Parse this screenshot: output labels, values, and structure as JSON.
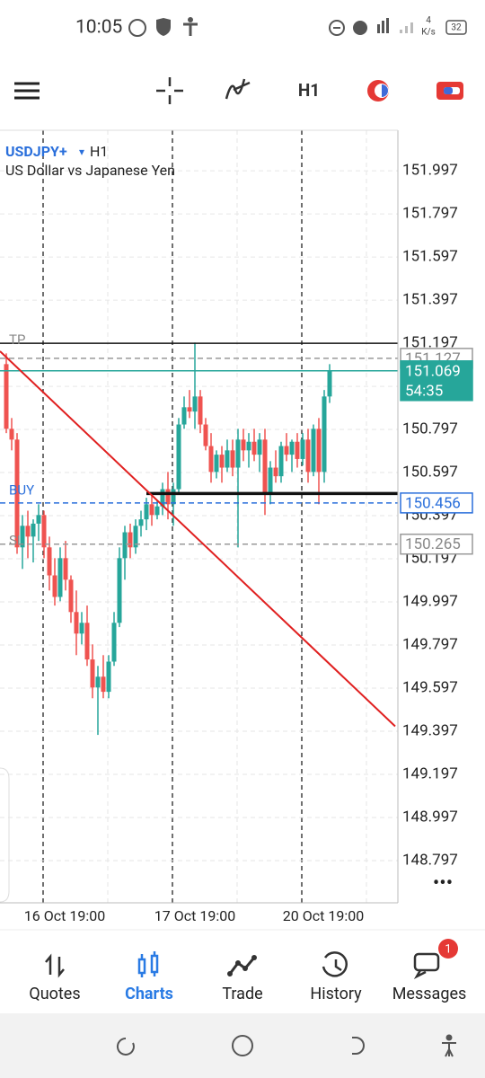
{
  "status_bar": {
    "time": "10:05",
    "net_speed": "4",
    "net_unit": "K/s",
    "battery": "32"
  },
  "toolbar": {
    "timeframe": "H1"
  },
  "chart_data": {
    "type": "candlestick",
    "symbol": "USDJPY+",
    "symbol_marker": "▾",
    "timeframe": "H1",
    "description": "US Dollar vs Japanese Yen",
    "x_labels": [
      "16 Oct 19:00",
      "17 Oct 19:00",
      "20 Oct 19:00"
    ],
    "ylim": [
      148.601,
      152.185
    ],
    "yticks": [
      151.997,
      151.797,
      151.597,
      151.397,
      151.197,
      150.997,
      150.797,
      150.597,
      150.397,
      150.197,
      149.997,
      149.797,
      149.597,
      149.397,
      149.197,
      148.997,
      148.797
    ],
    "colors": {
      "up": "#26a69a",
      "down": "#ef5350"
    },
    "candles": [
      [
        151.1,
        151.15,
        150.78,
        150.8
      ],
      [
        150.8,
        150.85,
        150.7,
        150.75
      ],
      [
        150.75,
        150.78,
        150.22,
        150.25
      ],
      [
        150.25,
        150.4,
        150.15,
        150.35
      ],
      [
        150.35,
        150.42,
        150.2,
        150.3
      ],
      [
        150.3,
        150.38,
        150.18,
        150.36
      ],
      [
        150.36,
        150.45,
        150.28,
        150.4
      ],
      [
        150.4,
        150.42,
        150.2,
        150.25
      ],
      [
        150.25,
        150.3,
        150.05,
        150.12
      ],
      [
        150.12,
        150.2,
        149.98,
        150.02
      ],
      [
        150.02,
        150.25,
        150.0,
        150.2
      ],
      [
        150.2,
        150.28,
        150.05,
        150.1
      ],
      [
        150.1,
        150.12,
        149.9,
        149.95
      ],
      [
        149.95,
        150.05,
        149.75,
        149.85
      ],
      [
        149.85,
        149.95,
        149.8,
        149.9
      ],
      [
        149.9,
        149.98,
        149.7,
        149.73
      ],
      [
        149.73,
        149.8,
        149.55,
        149.6
      ],
      [
        149.6,
        149.7,
        149.38,
        149.65
      ],
      [
        149.65,
        149.75,
        149.55,
        149.58
      ],
      [
        149.58,
        149.75,
        149.55,
        149.72
      ],
      [
        149.72,
        149.95,
        149.7,
        149.9
      ],
      [
        149.9,
        150.25,
        149.88,
        150.2
      ],
      [
        150.2,
        150.35,
        150.1,
        150.32
      ],
      [
        150.32,
        150.36,
        150.2,
        150.25
      ],
      [
        150.25,
        150.38,
        150.22,
        150.35
      ],
      [
        150.35,
        150.42,
        150.3,
        150.38
      ],
      [
        150.38,
        150.48,
        150.33,
        150.45
      ],
      [
        150.45,
        150.5,
        150.35,
        150.4
      ],
      [
        150.4,
        150.47,
        150.38,
        150.44
      ],
      [
        150.44,
        150.55,
        150.4,
        150.52
      ],
      [
        150.52,
        150.6,
        150.38,
        150.45
      ],
      [
        150.45,
        150.55,
        150.35,
        150.52
      ],
      [
        150.52,
        150.85,
        150.5,
        150.82
      ],
      [
        150.82,
        150.95,
        150.8,
        150.9
      ],
      [
        150.9,
        150.98,
        150.85,
        150.88
      ],
      [
        150.88,
        151.2,
        150.8,
        150.95
      ],
      [
        150.95,
        150.98,
        150.78,
        150.82
      ],
      [
        150.82,
        150.85,
        150.7,
        150.72
      ],
      [
        150.72,
        150.78,
        150.55,
        150.6
      ],
      [
        150.6,
        150.7,
        150.57,
        150.68
      ],
      [
        150.68,
        150.72,
        150.55,
        150.62
      ],
      [
        150.62,
        150.75,
        150.6,
        150.7
      ],
      [
        150.7,
        150.75,
        150.58,
        150.62
      ],
      [
        150.62,
        150.8,
        150.25,
        150.75
      ],
      [
        150.75,
        150.8,
        150.65,
        150.7
      ],
      [
        150.7,
        150.78,
        150.62,
        150.74
      ],
      [
        150.74,
        150.8,
        150.65,
        150.68
      ],
      [
        150.68,
        150.78,
        150.6,
        150.75
      ],
      [
        150.75,
        150.8,
        150.4,
        150.5
      ],
      [
        150.5,
        150.65,
        150.45,
        150.62
      ],
      [
        150.62,
        150.7,
        150.55,
        150.58
      ],
      [
        150.58,
        150.74,
        150.55,
        150.72
      ],
      [
        150.72,
        150.78,
        150.65,
        150.68
      ],
      [
        150.68,
        150.75,
        150.6,
        150.74
      ],
      [
        150.74,
        150.78,
        150.62,
        150.66
      ],
      [
        150.66,
        150.78,
        150.63,
        150.75
      ],
      [
        150.75,
        150.8,
        150.55,
        150.6
      ],
      [
        150.6,
        150.82,
        150.58,
        150.8
      ],
      [
        150.8,
        150.85,
        150.45,
        150.6
      ],
      [
        150.6,
        150.98,
        150.55,
        150.95
      ],
      [
        150.95,
        151.1,
        150.92,
        151.07
      ]
    ],
    "levels": [
      {
        "name": "TP",
        "value": 151.197,
        "color": "#111111",
        "dash": false
      },
      {
        "value": 151.127,
        "color": "#999999",
        "dash": true,
        "box": "outline"
      },
      {
        "value": 151.069,
        "color": "#26a69a",
        "dash": false,
        "box": "fill",
        "timer": "54:35"
      },
      {
        "name": "BUY",
        "value": 150.5,
        "color": "#111111",
        "dash": false
      },
      {
        "value": 150.456,
        "color": "#2a6fdb",
        "dash": true,
        "box": "outline"
      },
      {
        "name": "SL",
        "value": 150.265,
        "color": "#999999",
        "dash": true,
        "box": "outline"
      }
    ],
    "trendline": {
      "start": 151.16,
      "end": 149.42,
      "color": "#e02020"
    }
  },
  "nav": {
    "items": [
      "Quotes",
      "Charts",
      "Trade",
      "History",
      "Messages"
    ],
    "active": "Charts",
    "badge": "1"
  }
}
